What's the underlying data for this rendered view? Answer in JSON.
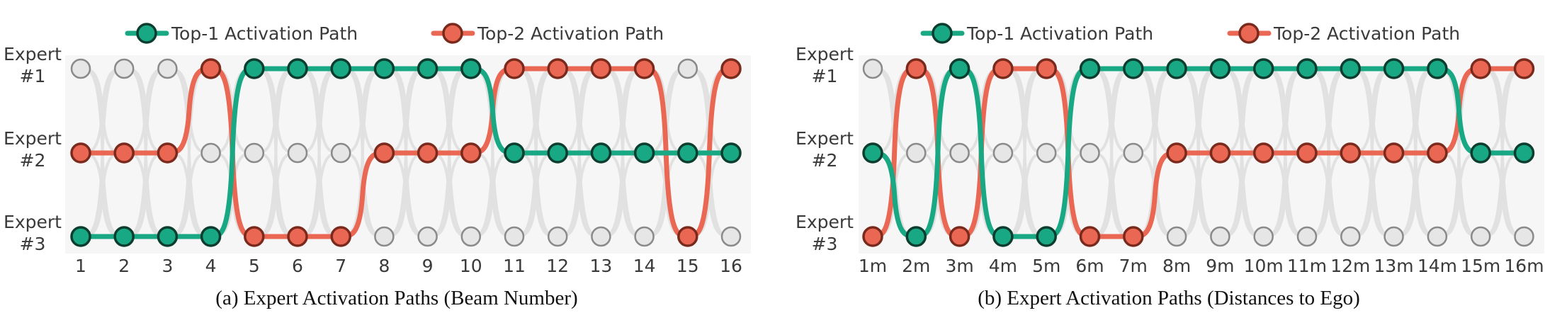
{
  "legend": {
    "top1_label": "Top-1 Activation Path",
    "top2_label": "Top-2 Activation Path"
  },
  "colors": {
    "top1": "#18a883",
    "top1_edge": "#0d3d2e",
    "top2": "#ea6753",
    "top2_edge": "#7a2a1c",
    "idle": "#e6e6e6"
  },
  "chart_data": [
    {
      "type": "line",
      "title": "(a) Expert Activation Paths (Beam Number)",
      "experts": [
        [
          "Expert",
          "#1"
        ],
        [
          "Expert",
          "#2"
        ],
        [
          "Expert",
          "#3"
        ]
      ],
      "categories": [
        "1",
        "2",
        "3",
        "4",
        "5",
        "6",
        "7",
        "8",
        "9",
        "10",
        "11",
        "12",
        "13",
        "14",
        "15",
        "16"
      ],
      "series": [
        {
          "name": "Top-1 Activation Path",
          "expert": [
            3,
            3,
            3,
            3,
            1,
            1,
            1,
            1,
            1,
            1,
            2,
            2,
            2,
            2,
            2,
            2
          ]
        },
        {
          "name": "Top-2 Activation Path",
          "expert": [
            2,
            2,
            2,
            1,
            3,
            3,
            3,
            2,
            2,
            2,
            1,
            1,
            1,
            1,
            3,
            1
          ]
        }
      ]
    },
    {
      "type": "line",
      "title": "(b) Expert Activation Paths (Distances to Ego)",
      "experts": [
        [
          "Expert",
          "#1"
        ],
        [
          "Expert",
          "#2"
        ],
        [
          "Expert",
          "#3"
        ]
      ],
      "categories": [
        "1m",
        "2m",
        "3m",
        "4m",
        "5m",
        "6m",
        "7m",
        "8m",
        "9m",
        "10m",
        "11m",
        "12m",
        "13m",
        "14m",
        "15m",
        "16m"
      ],
      "series": [
        {
          "name": "Top-1 Activation Path",
          "expert": [
            2,
            3,
            1,
            3,
            3,
            1,
            1,
            1,
            1,
            1,
            1,
            1,
            1,
            1,
            2,
            2
          ]
        },
        {
          "name": "Top-2 Activation Path",
          "expert": [
            3,
            1,
            3,
            1,
            1,
            3,
            3,
            2,
            2,
            2,
            2,
            2,
            2,
            2,
            1,
            1
          ]
        }
      ]
    }
  ]
}
